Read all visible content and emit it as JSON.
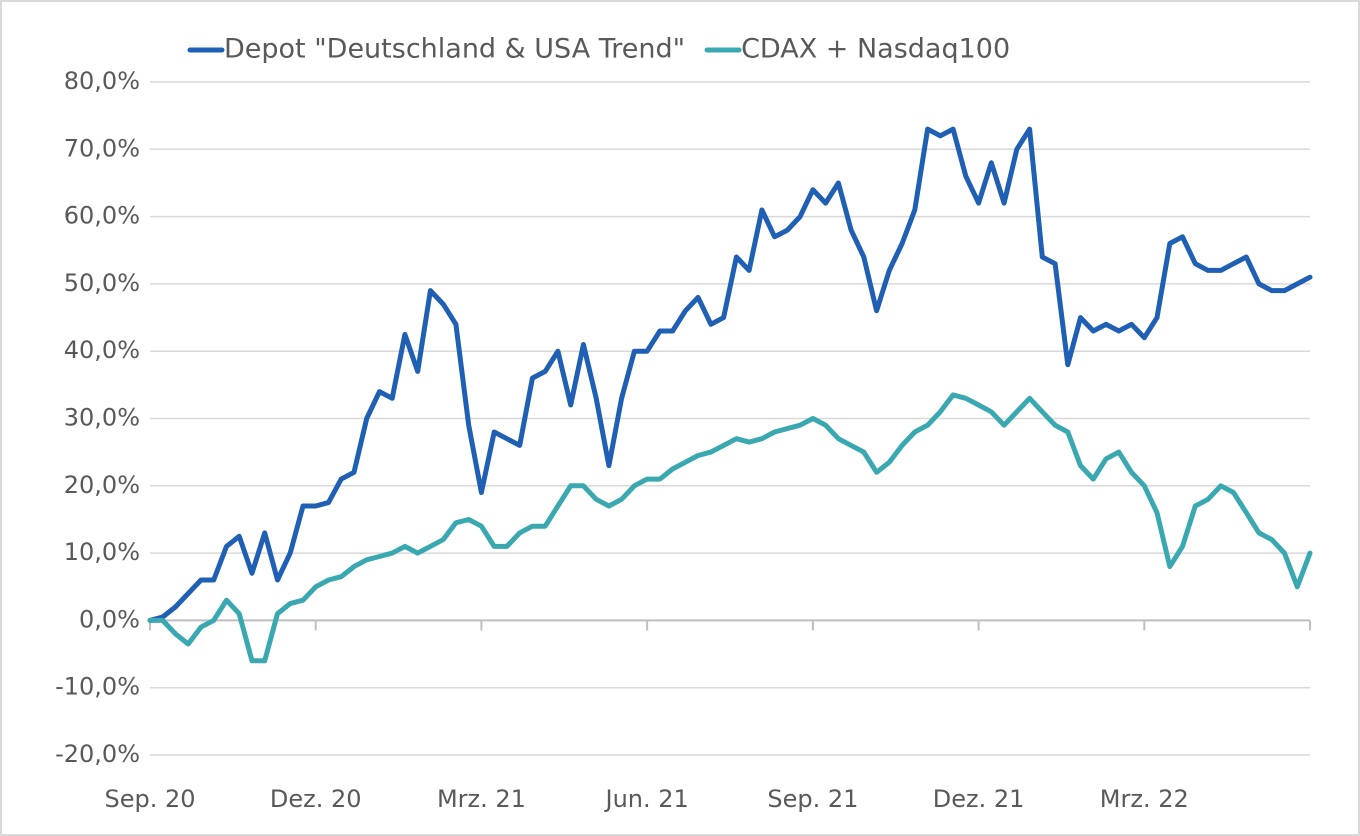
{
  "chart_data": {
    "type": "line",
    "categories": [
      "Sep. 20",
      null,
      null,
      null,
      null,
      null,
      null,
      null,
      null,
      null,
      null,
      null,
      null,
      "Dez. 20",
      null,
      null,
      null,
      null,
      null,
      null,
      null,
      null,
      null,
      null,
      null,
      null,
      "Mrz. 21",
      null,
      null,
      null,
      null,
      null,
      null,
      null,
      null,
      null,
      null,
      null,
      null,
      "Jun. 21",
      null,
      null,
      null,
      null,
      null,
      null,
      null,
      null,
      null,
      null,
      null,
      null,
      "Sep. 21",
      null,
      null,
      null,
      null,
      null,
      null,
      null,
      null,
      null,
      null,
      null,
      null,
      "Dez. 21",
      null,
      null,
      null,
      null,
      null,
      null,
      null,
      null,
      null,
      null,
      null,
      null,
      "Mrz. 22",
      null,
      null,
      null,
      null,
      null,
      null,
      null,
      null,
      null,
      null,
      null,
      null,
      null
    ],
    "series": [
      {
        "name": "Depot \"Deutschland & USA Trend\"",
        "color": "#1f5fb4",
        "values": [
          0,
          0.5,
          2,
          4,
          6,
          6,
          11,
          12.5,
          7,
          13,
          6,
          10,
          17,
          17,
          17.5,
          21,
          22,
          30,
          34,
          33,
          42.5,
          37,
          49,
          47,
          44,
          29,
          19,
          28,
          27,
          26,
          36,
          37,
          40,
          32,
          41,
          33,
          23,
          33,
          40,
          40,
          43,
          43,
          46,
          48,
          44,
          45,
          54,
          52,
          61,
          57,
          58,
          60,
          64,
          62,
          65,
          58,
          54,
          46,
          52,
          56,
          61,
          73,
          72,
          73,
          66,
          62,
          68,
          62,
          70,
          73,
          54,
          53,
          38,
          45,
          43,
          44,
          43,
          44,
          42,
          45,
          56,
          57,
          53,
          52,
          52,
          53,
          54,
          50,
          49,
          49,
          50,
          51
        ]
      },
      {
        "name": "CDAX + Nasdaq100",
        "color": "#3aa8b0",
        "values": [
          0,
          0,
          -2,
          -3.5,
          -1,
          0,
          3,
          1,
          -6,
          -6,
          1,
          2.5,
          3,
          5,
          6,
          6.5,
          8,
          9,
          9.5,
          10,
          11,
          10,
          11,
          12,
          14.5,
          15,
          14,
          11,
          11,
          13,
          14,
          14,
          17,
          20,
          20,
          18,
          17,
          18,
          20,
          21,
          21,
          22.5,
          23.5,
          24.5,
          25,
          26,
          27,
          26.5,
          27,
          28,
          28.5,
          29,
          30,
          29,
          27,
          26,
          25,
          22,
          23.5,
          26,
          28,
          29,
          31,
          33.5,
          33,
          32,
          31,
          29,
          31,
          33,
          31,
          29,
          28,
          23,
          21,
          24,
          25,
          22,
          20,
          16,
          8,
          11,
          17,
          18,
          20,
          19,
          16,
          13,
          12,
          10,
          5,
          10
        ]
      }
    ],
    "ylim": [
      -20,
      80
    ],
    "yticks": [
      {
        "value": -20,
        "label": "-20,0%"
      },
      {
        "value": -10,
        "label": "-10,0%"
      },
      {
        "value": 0,
        "label": "0,0%"
      },
      {
        "value": 10,
        "label": "10,0%"
      },
      {
        "value": 20,
        "label": "20,0%"
      },
      {
        "value": 30,
        "label": "30,0%"
      },
      {
        "value": 40,
        "label": "40,0%"
      },
      {
        "value": 50,
        "label": "50,0%"
      },
      {
        "value": 60,
        "label": "60,0%"
      },
      {
        "value": 70,
        "label": "70,0%"
      },
      {
        "value": 80,
        "label": "80,0%"
      }
    ],
    "grid": true,
    "legend": "top"
  }
}
